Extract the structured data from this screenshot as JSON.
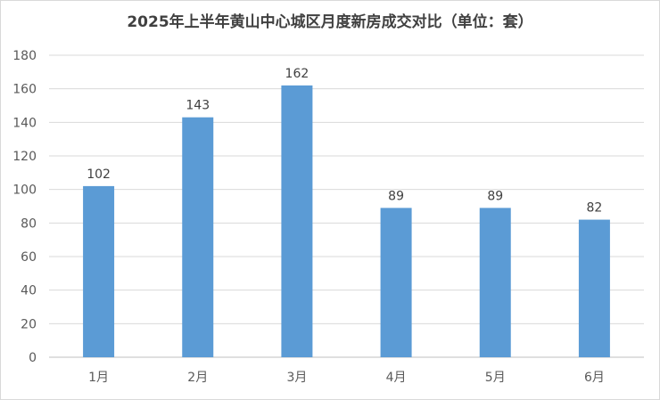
{
  "chart_data": {
    "type": "bar",
    "title": "2025年上半年黄山中心城区月度新房成交对比（单位：套）",
    "categories": [
      "1月",
      "2月",
      "3月",
      "4月",
      "5月",
      "6月"
    ],
    "values": [
      102,
      143,
      162,
      89,
      89,
      82
    ],
    "ylim": [
      0,
      180
    ],
    "yticks": [
      0,
      20,
      40,
      60,
      80,
      100,
      120,
      140,
      160,
      180
    ],
    "xlabel": "",
    "ylabel": "",
    "grid": true,
    "bar_color": "#5b9bd5",
    "data_labels": true
  }
}
